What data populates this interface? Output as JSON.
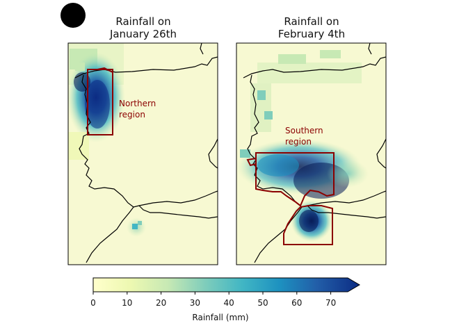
{
  "panels": [
    {
      "title_line1": "Rainfall on",
      "title_line2": "January 26th",
      "region_label_line1": "Northern",
      "region_label_line2": "region"
    },
    {
      "title_line1": "Rainfall on",
      "title_line2": "February 4th",
      "region_label_line1": "Southern",
      "region_label_line2": "region"
    }
  ],
  "colorbar": {
    "label": "Rainfall (mm)",
    "ticks": [
      "0",
      "10",
      "20",
      "30",
      "40",
      "50",
      "60",
      "70"
    ],
    "colors": [
      "#ffffcc",
      "#c7e9b4",
      "#7fcdbb",
      "#41b6c4",
      "#1d91c0",
      "#225ea8",
      "#0c2c84",
      "#081d58"
    ],
    "extend": "max"
  },
  "colors": {
    "region_outline": "#8b0000",
    "coastline": "#000000",
    "background_rain": "#f5f8cf"
  }
}
